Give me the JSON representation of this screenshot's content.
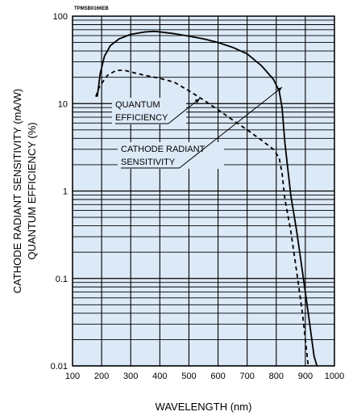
{
  "chart_data": {
    "type": "line",
    "figure_code": "TPMSB0166EB",
    "xlabel": "WAVELENGTH (nm)",
    "ylabel_line1": "CATHODE RADIANT SENSITIVITY (mA/W)",
    "ylabel_line2": "QUANTUM EFFICIENCY (%)",
    "xlim": [
      100,
      1000
    ],
    "ylim": [
      0.01,
      100
    ],
    "yscale": "log",
    "x_ticks": [
      "100",
      "200",
      "300",
      "400",
      "500",
      "600",
      "700",
      "800",
      "900",
      "1000"
    ],
    "y_ticks": [
      "0.01",
      "0.1",
      "1",
      "10",
      "100"
    ],
    "grid": true,
    "background_color": "#dce9f7",
    "line_color": "#000000",
    "series": [
      {
        "name": "CATHODE RADIANT SENSITIVITY",
        "style": "solid",
        "x": [
          185,
          195,
          210,
          230,
          260,
          300,
          350,
          380,
          400,
          450,
          500,
          550,
          600,
          650,
          700,
          750,
          790,
          810,
          820,
          830,
          850,
          870,
          890,
          910,
          930,
          940
        ],
        "y": [
          12,
          22,
          35,
          46,
          55,
          62,
          66,
          67,
          66,
          63,
          59,
          55,
          50,
          44,
          37,
          27,
          19,
          14,
          9,
          3.5,
          0.9,
          0.35,
          0.12,
          0.04,
          0.013,
          0.01
        ]
      },
      {
        "name": "QUANTUM EFFICIENCY",
        "style": "dashed",
        "x": [
          180,
          190,
          200,
          220,
          250,
          280,
          300,
          350,
          400,
          450,
          500,
          550,
          600,
          650,
          700,
          750,
          790,
          810,
          820,
          830,
          850,
          870,
          890,
          900,
          910
        ],
        "y": [
          12,
          15,
          17,
          21,
          24,
          24,
          23,
          21,
          19.5,
          17.5,
          14,
          11,
          8.5,
          6.5,
          5,
          3.8,
          3,
          2.4,
          1.6,
          0.8,
          0.35,
          0.12,
          0.04,
          0.02,
          0.01
        ]
      }
    ],
    "annotations": [
      {
        "lines": [
          "QUANTUM",
          "EFFICIENCY"
        ],
        "target_series": "QUANTUM EFFICIENCY"
      },
      {
        "lines": [
          "CATHODE RADIANT",
          "SENSITIVITY"
        ],
        "target_series": "CATHODE RADIANT SENSITIVITY"
      }
    ]
  }
}
